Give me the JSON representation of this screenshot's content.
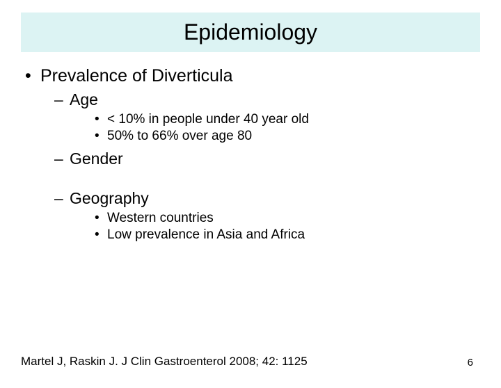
{
  "title": "Epidemiology",
  "bullets": {
    "main": "Prevalence of Diverticula",
    "sub1": "Age",
    "sub1_items": {
      "a": "< 10% in people under 40 year old",
      "b": "50% to 66% over age 80"
    },
    "sub2": "Gender",
    "sub3": "Geography",
    "sub3_items": {
      "a": "Western countries",
      "b": "Low prevalence in Asia and Africa"
    }
  },
  "citation": "Martel J, Raskin J. J Clin Gastroenterol 2008; 42: 1125",
  "page_number": "6",
  "colors": {
    "title_bg": "#dcf3f3",
    "text": "#000000",
    "background": "#ffffff"
  },
  "fonts": {
    "title_size": 32,
    "lvl1_size": 25,
    "lvl2_size": 23,
    "lvl3_size": 19,
    "citation_size": 17,
    "page_number_size": 15
  }
}
